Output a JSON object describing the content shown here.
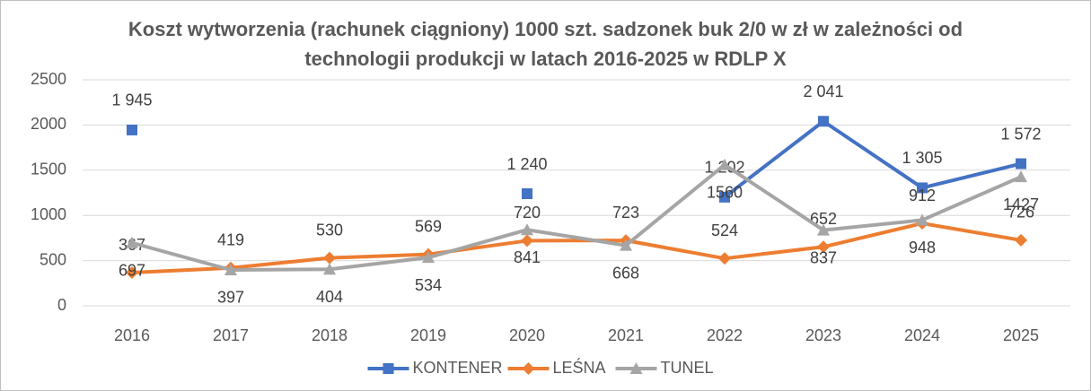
{
  "chart_data": {
    "type": "line",
    "title": "Koszt wytworzenia (rachunek ciągniony) 1000 szt. sadzonek buk 2/0 w zł w zależności od technologii produkcji w latach 2016-2025 w RDLP X",
    "categories": [
      "2016",
      "2017",
      "2018",
      "2019",
      "2020",
      "2021",
      "2022",
      "2023",
      "2024",
      "2025"
    ],
    "series": [
      {
        "name": "KONTENER",
        "color": "#4472c4",
        "marker": "square",
        "values": [
          1945,
          null,
          null,
          null,
          1240,
          null,
          1202,
          2041,
          1305,
          1572
        ],
        "value_labels": [
          "1 945",
          null,
          null,
          null,
          "1 240",
          null,
          "1 202",
          "2 041",
          "1 305",
          "1 572"
        ]
      },
      {
        "name": "LEŚNA",
        "color": "#ed7d31",
        "marker": "diamond",
        "values": [
          367,
          419,
          530,
          569,
          720,
          723,
          524,
          652,
          912,
          726
        ]
      },
      {
        "name": "TUNEL",
        "color": "#a5a5a5",
        "marker": "triangle",
        "values": [
          697,
          397,
          404,
          534,
          841,
          668,
          1560,
          837,
          948,
          1427
        ]
      }
    ],
    "ylim": [
      0,
      2500
    ],
    "yticks": [
      0,
      500,
      1000,
      1500,
      2000,
      2500
    ],
    "grid": true,
    "legend": "bottom"
  }
}
